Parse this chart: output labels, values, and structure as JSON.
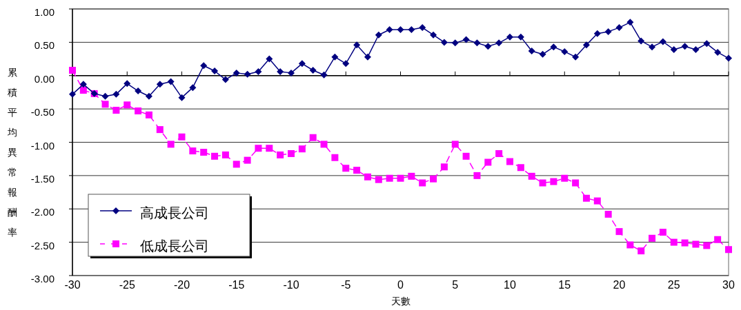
{
  "chart_data": {
    "type": "line",
    "xlabel": "天數",
    "ylabel": "累積平均異常報酬率",
    "x": [
      -30,
      -29,
      -28,
      -27,
      -26,
      -25,
      -24,
      -23,
      -22,
      -21,
      -20,
      -19,
      -18,
      -17,
      -16,
      -15,
      -14,
      -13,
      -12,
      -11,
      -10,
      -9,
      -8,
      -7,
      -6,
      -5,
      -4,
      -3,
      -2,
      -1,
      0,
      1,
      2,
      3,
      4,
      5,
      6,
      7,
      8,
      9,
      10,
      11,
      12,
      13,
      14,
      15,
      16,
      17,
      18,
      19,
      20,
      21,
      22,
      23,
      24,
      25,
      26,
      27,
      28,
      29,
      30
    ],
    "series": [
      {
        "name": "高成長公司",
        "color": "#000080",
        "marker": "diamond",
        "line_style": "solid",
        "values": [
          -0.28,
          -0.13,
          -0.27,
          -0.31,
          -0.28,
          -0.12,
          -0.23,
          -0.31,
          -0.13,
          -0.09,
          -0.33,
          -0.18,
          0.15,
          0.07,
          -0.06,
          0.04,
          0.02,
          0.06,
          0.25,
          0.06,
          0.04,
          0.18,
          0.08,
          0.01,
          0.28,
          0.18,
          0.46,
          0.28,
          0.61,
          0.69,
          0.69,
          0.69,
          0.72,
          0.61,
          0.5,
          0.49,
          0.54,
          0.49,
          0.44,
          0.49,
          0.58,
          0.58,
          0.37,
          0.32,
          0.43,
          0.36,
          0.28,
          0.46,
          0.63,
          0.66,
          0.72,
          0.8,
          0.52,
          0.43,
          0.51,
          0.39,
          0.44,
          0.39,
          0.48,
          0.35,
          0.26
        ]
      },
      {
        "name": "低成長公司",
        "color": "#ff00ff",
        "marker": "square",
        "line_style": "dashed",
        "values": [
          0.08,
          -0.22,
          -0.27,
          -0.43,
          -0.52,
          -0.44,
          -0.53,
          -0.59,
          -0.81,
          -1.03,
          -0.92,
          -1.13,
          -1.15,
          -1.21,
          -1.19,
          -1.33,
          -1.27,
          -1.09,
          -1.09,
          -1.19,
          -1.17,
          -1.1,
          -0.93,
          -1.03,
          -1.23,
          -1.39,
          -1.42,
          -1.52,
          -1.56,
          -1.54,
          -1.54,
          -1.51,
          -1.61,
          -1.55,
          -1.37,
          -1.03,
          -1.21,
          -1.5,
          -1.3,
          -1.17,
          -1.29,
          -1.38,
          -1.51,
          -1.61,
          -1.59,
          -1.54,
          -1.61,
          -1.84,
          -1.88,
          -2.08,
          -2.34,
          -2.54,
          -2.63,
          -2.44,
          -2.35,
          -2.5,
          -2.51,
          -2.53,
          -2.55,
          -2.46,
          -2.61
        ]
      }
    ],
    "xlim": [
      -30,
      30
    ],
    "xticks": [
      -30,
      -25,
      -20,
      -15,
      -10,
      -5,
      0,
      5,
      10,
      15,
      20,
      25,
      30
    ],
    "ylim": [
      -3,
      1
    ],
    "yticks": [
      {
        "value": 1,
        "label": "1.00"
      },
      {
        "value": 0.5,
        "label": "0.50"
      },
      {
        "value": 0,
        "label": "0.00"
      },
      {
        "value": -0.5,
        "label": "-0.50"
      },
      {
        "value": -1,
        "label": "-1.00"
      },
      {
        "value": -1.5,
        "label": "-1.50"
      },
      {
        "value": -2,
        "label": "-2.00"
      },
      {
        "value": -2.5,
        "label": "-2.50"
      },
      {
        "value": -3,
        "label": "-3.00"
      }
    ],
    "grid": "y",
    "legend": "bottom left"
  }
}
